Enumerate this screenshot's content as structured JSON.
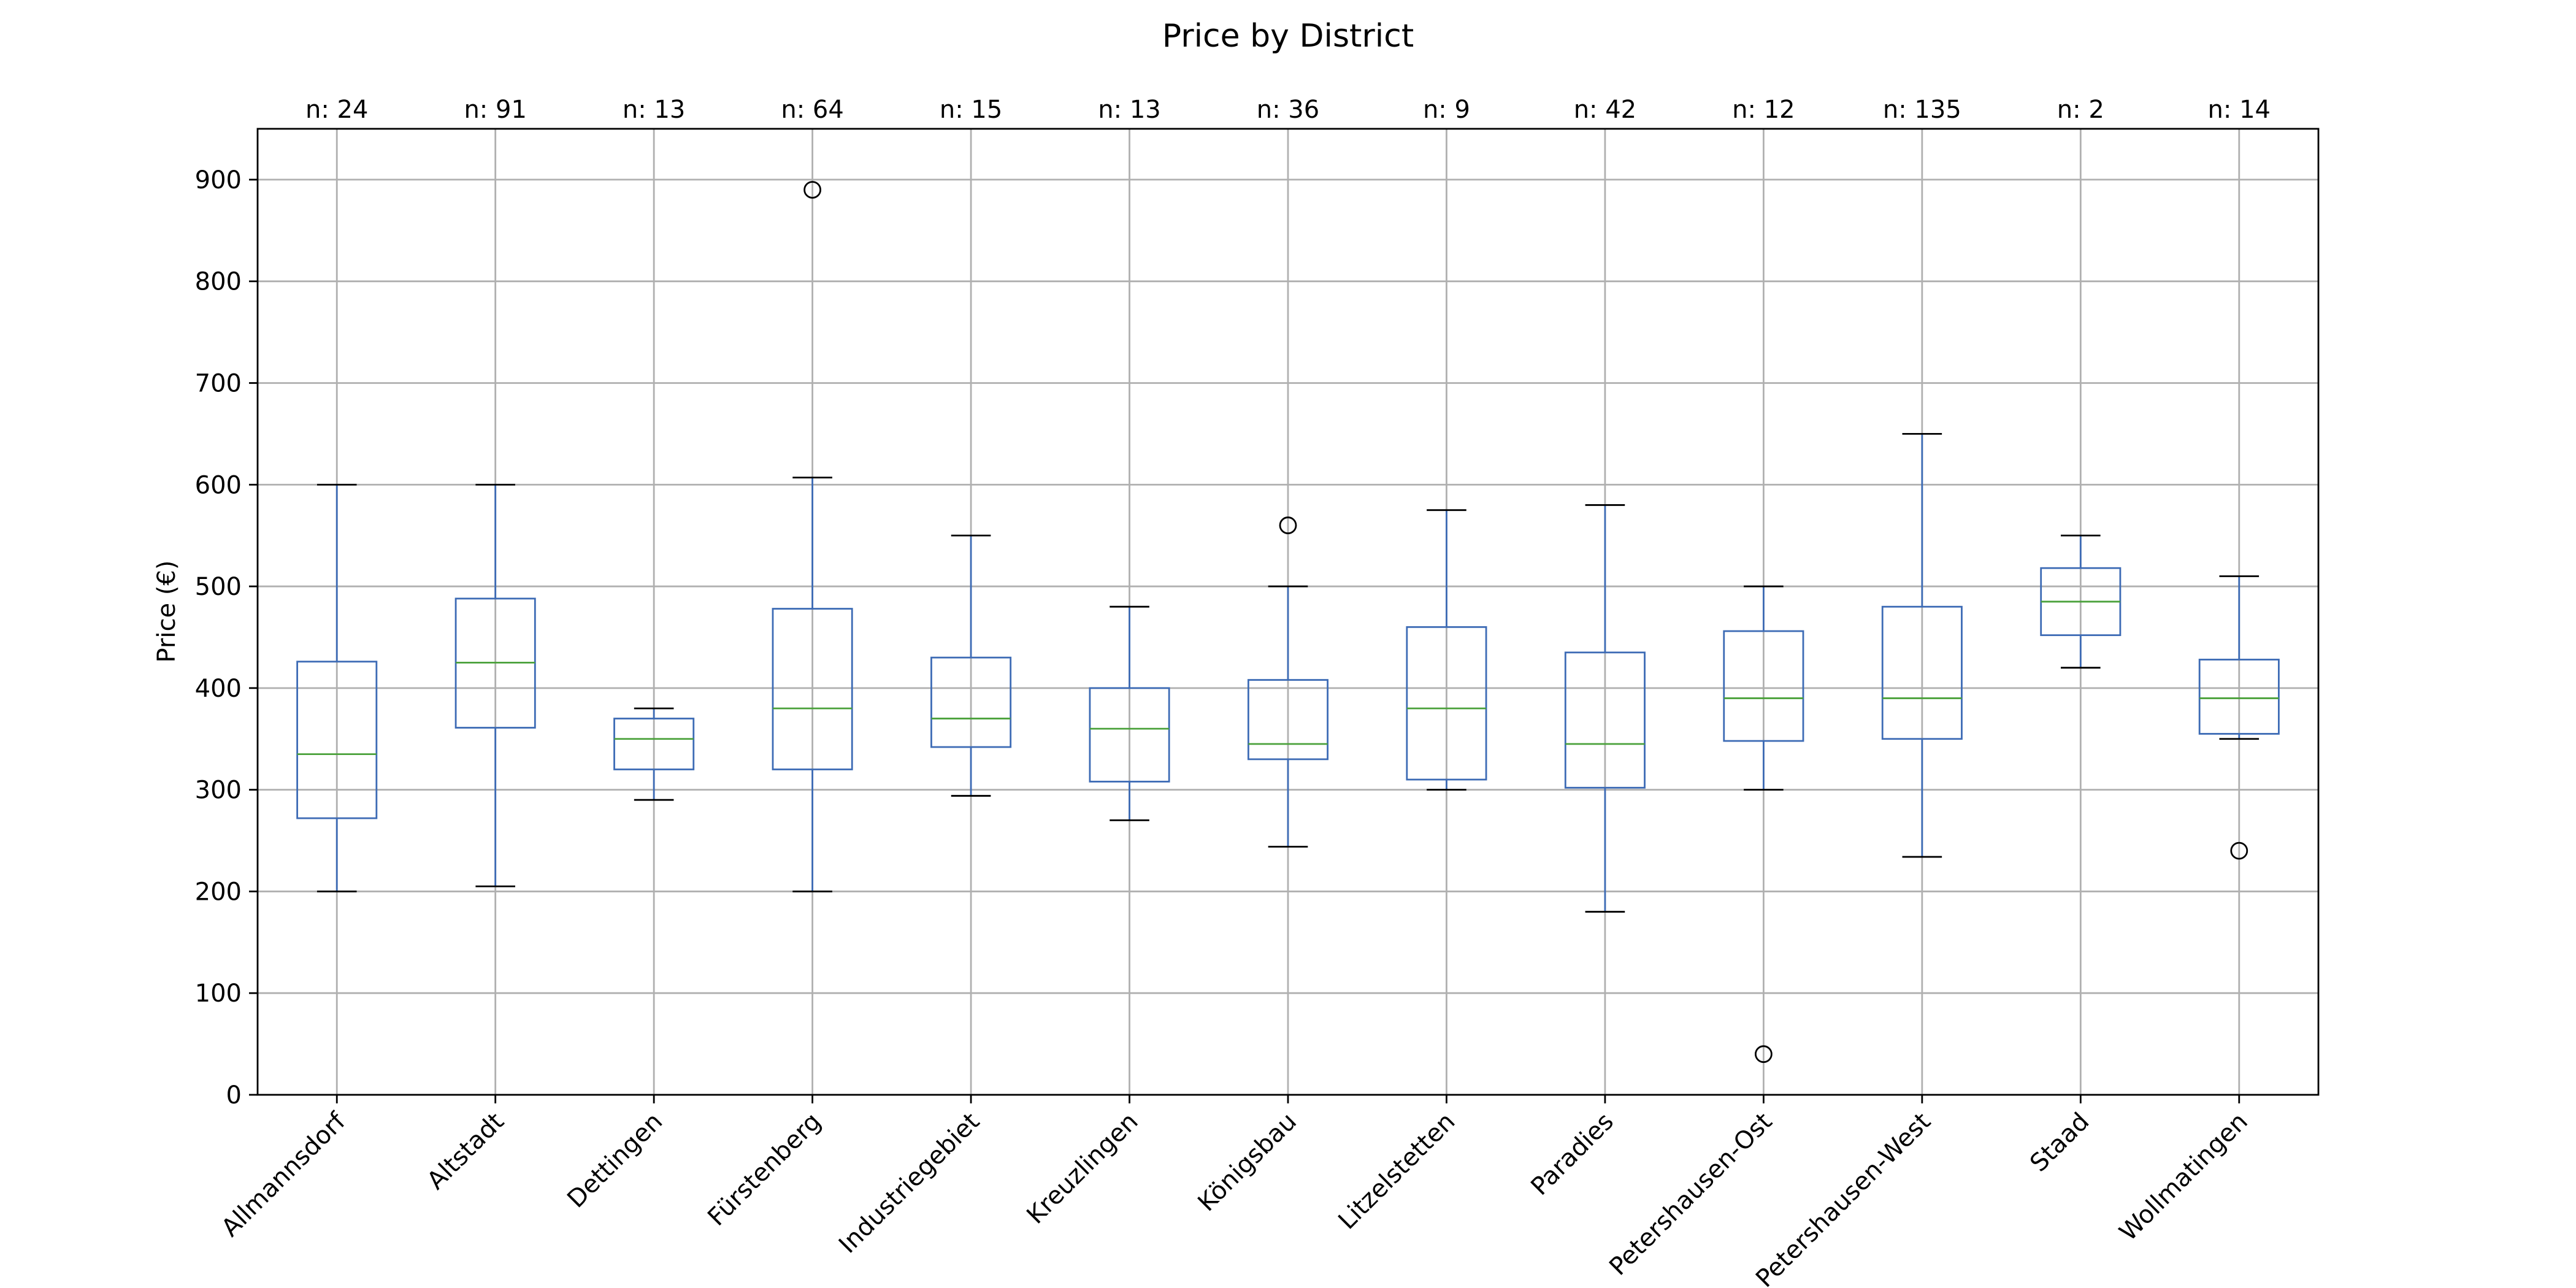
{
  "chart_data": {
    "type": "boxplot",
    "title": "Price by District",
    "ylabel": "Price (€)",
    "xlabel": "",
    "ylim": [
      0,
      950
    ],
    "yticks": [
      0,
      100,
      200,
      300,
      400,
      500,
      600,
      700,
      800,
      900
    ],
    "grid": true,
    "categories": [
      "Allmannsdorf",
      "Altstadt",
      "Dettingen",
      "Fürstenberg",
      "Industriegebiet",
      "Kreuzlingen",
      "Königsbau",
      "Litzelstetten",
      "Paradies",
      "Petershausen-Ost",
      "Petershausen-West",
      "Staad",
      "Wollmatingen"
    ],
    "counts": [
      "n: 24",
      "n: 91",
      "n: 13",
      "n: 64",
      "n: 15",
      "n: 13",
      "n: 36",
      "n: 9",
      "n: 42",
      "n: 12",
      "n: 135",
      "n: 2",
      "n: 14"
    ],
    "boxes": [
      {
        "whislo": 200,
        "q1": 272,
        "med": 335,
        "q3": 426,
        "whishi": 600,
        "fliers": []
      },
      {
        "whislo": 205,
        "q1": 361,
        "med": 425,
        "q3": 488,
        "whishi": 600,
        "fliers": []
      },
      {
        "whislo": 290,
        "q1": 320,
        "med": 350,
        "q3": 370,
        "whishi": 380,
        "fliers": []
      },
      {
        "whislo": 200,
        "q1": 320,
        "med": 380,
        "q3": 478,
        "whishi": 607,
        "fliers": [
          890
        ]
      },
      {
        "whislo": 294,
        "q1": 342,
        "med": 370,
        "q3": 430,
        "whishi": 550,
        "fliers": []
      },
      {
        "whislo": 270,
        "q1": 308,
        "med": 360,
        "q3": 400,
        "whishi": 480,
        "fliers": []
      },
      {
        "whislo": 244,
        "q1": 330,
        "med": 345,
        "q3": 408,
        "whishi": 500,
        "fliers": [
          560
        ]
      },
      {
        "whislo": 300,
        "q1": 310,
        "med": 380,
        "q3": 460,
        "whishi": 575,
        "fliers": []
      },
      {
        "whislo": 180,
        "q1": 302,
        "med": 345,
        "q3": 435,
        "whishi": 580,
        "fliers": []
      },
      {
        "whislo": 300,
        "q1": 348,
        "med": 390,
        "q3": 456,
        "whishi": 500,
        "fliers": [
          40
        ]
      },
      {
        "whislo": 234,
        "q1": 350,
        "med": 390,
        "q3": 480,
        "whishi": 650,
        "fliers": []
      },
      {
        "whislo": 420,
        "q1": 452,
        "med": 485,
        "q3": 518,
        "whishi": 550,
        "fliers": []
      },
      {
        "whislo": 350,
        "q1": 355,
        "med": 390,
        "q3": 428,
        "whishi": 510,
        "fliers": [
          240
        ]
      }
    ],
    "colors": {
      "box": "#3d6bb5",
      "median": "#4aa13a",
      "grid": "#b0b0b0",
      "caps": "#000000"
    }
  }
}
